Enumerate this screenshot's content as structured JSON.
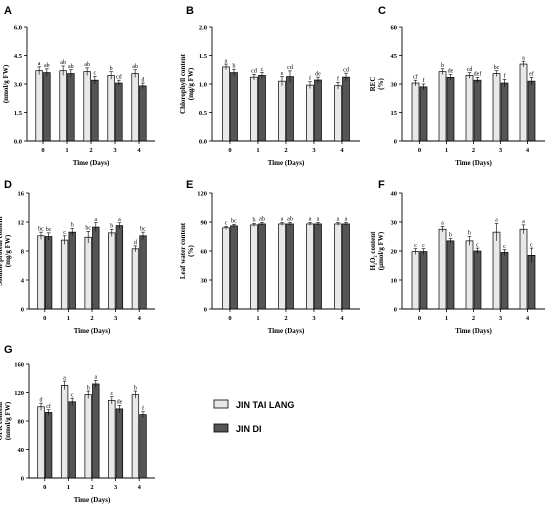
{
  "legend": {
    "series": [
      {
        "name": "JIN TAI LANG",
        "color": "#e8e8e8"
      },
      {
        "name": "JIN DI",
        "color": "#555555"
      }
    ]
  },
  "chart_data": [
    {
      "panel": "A",
      "type": "bar",
      "ylabel": [
        "MDA content",
        "(nmol/g FW)"
      ],
      "xlabel": "Time (Days)",
      "categories": [
        "0",
        "1",
        "2",
        "3",
        "4"
      ],
      "ylim": [
        0,
        6.0
      ],
      "yticks": [
        "0.0",
        "1.5",
        "3.0",
        "4.5",
        "6.0"
      ],
      "series": [
        {
          "name": "JIN TAI LANG",
          "values": [
            3.7,
            3.7,
            3.65,
            3.45,
            3.55
          ],
          "errors": [
            0.2,
            0.25,
            0.2,
            0.2,
            0.2
          ],
          "sig": [
            "a",
            "ab",
            "ab",
            "b",
            "ab"
          ]
        },
        {
          "name": "JIN DI",
          "values": [
            3.6,
            3.55,
            3.2,
            3.05,
            2.9
          ],
          "errors": [
            0.2,
            0.2,
            0.2,
            0.15,
            0.15
          ],
          "sig": [
            "ab",
            "ab",
            "c",
            "cd",
            "d"
          ]
        }
      ]
    },
    {
      "panel": "B",
      "type": "bar",
      "ylabel": [
        "Chlorophyll content",
        "(mg/g FW)"
      ],
      "xlabel": "Time (Days)",
      "categories": [
        "0",
        "1",
        "2",
        "3",
        "4"
      ],
      "ylim": [
        0,
        2.0
      ],
      "yticks": [
        "0.0",
        "0.5",
        "1.0",
        "1.5",
        "2.0"
      ],
      "series": [
        {
          "name": "JIN TAI LANG",
          "values": [
            1.3,
            1.12,
            1.05,
            0.98,
            0.97
          ],
          "errors": [
            0.05,
            0.05,
            0.08,
            0.06,
            0.06
          ],
          "sig": [
            "a",
            "cd",
            "e",
            "f",
            "f"
          ]
        },
        {
          "name": "JIN DI",
          "values": [
            1.2,
            1.15,
            1.13,
            1.07,
            1.12
          ],
          "errors": [
            0.06,
            0.05,
            0.1,
            0.05,
            0.07
          ],
          "sig": [
            "b",
            "c",
            "cd",
            "de",
            "cd"
          ]
        }
      ]
    },
    {
      "panel": "C",
      "type": "bar",
      "ylabel": [
        "REC",
        "(%)"
      ],
      "xlabel": "Time (Days)",
      "categories": [
        "0",
        "1",
        "2",
        "3",
        "4"
      ],
      "ylim": [
        0,
        60
      ],
      "yticks": [
        "0",
        "15",
        "30",
        "45",
        "60"
      ],
      "series": [
        {
          "name": "JIN TAI LANG",
          "values": [
            30.5,
            36.5,
            34.5,
            35.5,
            40.5
          ],
          "errors": [
            1.5,
            1.5,
            1.5,
            1.5,
            1.5
          ],
          "sig": [
            "cf",
            "b",
            "cd",
            "bc",
            "a"
          ]
        },
        {
          "name": "JIN DI",
          "values": [
            28.5,
            33.5,
            32.0,
            30.5,
            31.5
          ],
          "errors": [
            1.5,
            1.5,
            1.5,
            2.0,
            2.0
          ],
          "sig": [
            "f",
            "de",
            "def",
            "f",
            "ef"
          ]
        }
      ]
    },
    {
      "panel": "D",
      "type": "bar",
      "ylabel": [
        "Soluble protein content",
        "(mg/g FW)"
      ],
      "xlabel": "Time (Days)",
      "categories": [
        "0",
        "1",
        "2",
        "3",
        "4"
      ],
      "ylim": [
        0,
        16
      ],
      "yticks": [
        "0",
        "4",
        "8",
        "12",
        "16"
      ],
      "series": [
        {
          "name": "JIN TAI LANG",
          "values": [
            10.1,
            9.5,
            9.9,
            10.5,
            8.3
          ],
          "errors": [
            0.5,
            0.6,
            0.8,
            0.5,
            0.4
          ],
          "sig": [
            "bc",
            "c",
            "bc",
            "b",
            "d"
          ]
        },
        {
          "name": "JIN DI",
          "values": [
            10.0,
            10.6,
            11.3,
            11.5,
            10.1
          ],
          "errors": [
            0.5,
            0.5,
            0.6,
            0.4,
            0.5
          ],
          "sig": [
            "bc",
            "b",
            "a",
            "a",
            "bc"
          ]
        }
      ]
    },
    {
      "panel": "E",
      "type": "bar",
      "ylabel": [
        "Leaf water content",
        "(%)"
      ],
      "xlabel": "Time (Days)",
      "categories": [
        "0",
        "1",
        "2",
        "3",
        "4"
      ],
      "ylim": [
        0,
        120
      ],
      "yticks": [
        "0",
        "30",
        "60",
        "90",
        "120"
      ],
      "series": [
        {
          "name": "JIN TAI LANG",
          "values": [
            84,
            87,
            88,
            88,
            88
          ],
          "errors": [
            1.5,
            1.5,
            1.5,
            1.5,
            1.5
          ],
          "sig": [
            "c",
            "b",
            "a",
            "a",
            "a"
          ]
        },
        {
          "name": "JIN DI",
          "values": [
            86,
            88,
            88,
            88,
            88
          ],
          "errors": [
            1.5,
            1.5,
            1.5,
            1.5,
            1.5
          ],
          "sig": [
            "bc",
            "ab",
            "ab",
            "a",
            "a"
          ]
        }
      ]
    },
    {
      "panel": "F",
      "type": "bar",
      "ylabel": [
        "H₂O₂ content",
        "(μmol/g FW)"
      ],
      "xlabel": "Time (Days)",
      "categories": [
        "0",
        "1",
        "2",
        "3",
        "4"
      ],
      "ylim": [
        0,
        40
      ],
      "yticks": [
        "0",
        "10",
        "20",
        "30",
        "40"
      ],
      "series": [
        {
          "name": "JIN TAI LANG",
          "values": [
            19.8,
            27.5,
            23.5,
            26.5,
            27.5
          ],
          "errors": [
            1.0,
            1.0,
            1.5,
            3.0,
            1.5
          ],
          "sig": [
            "c",
            "a",
            "b",
            "a",
            "a"
          ]
        },
        {
          "name": "JIN DI",
          "values": [
            19.8,
            23.5,
            20.0,
            19.5,
            18.5
          ],
          "errors": [
            1.0,
            0.8,
            1.0,
            1.0,
            2.5
          ],
          "sig": [
            "c",
            "b",
            "c",
            "c",
            "c"
          ]
        }
      ]
    },
    {
      "panel": "G",
      "type": "bar",
      "ylabel": [
        "OFR content",
        "(nmol/g FW)"
      ],
      "xlabel": "Time (Days)",
      "categories": [
        "0",
        "1",
        "2",
        "3",
        "4"
      ],
      "ylim": [
        0,
        160
      ],
      "yticks": [
        "0",
        "40",
        "80",
        "120",
        "160"
      ],
      "series": [
        {
          "name": "JIN TAI LANG",
          "values": [
            100,
            130,
            117,
            109,
            117
          ],
          "errors": [
            5,
            6,
            5,
            5,
            5
          ],
          "sig": [
            "d",
            "a",
            "b",
            "c",
            "b"
          ]
        },
        {
          "name": "JIN DI",
          "values": [
            92,
            107,
            132,
            97,
            89
          ],
          "errors": [
            4,
            5,
            5,
            5,
            4
          ],
          "sig": [
            "cf",
            "c",
            "a",
            "de",
            "f"
          ]
        }
      ]
    }
  ]
}
